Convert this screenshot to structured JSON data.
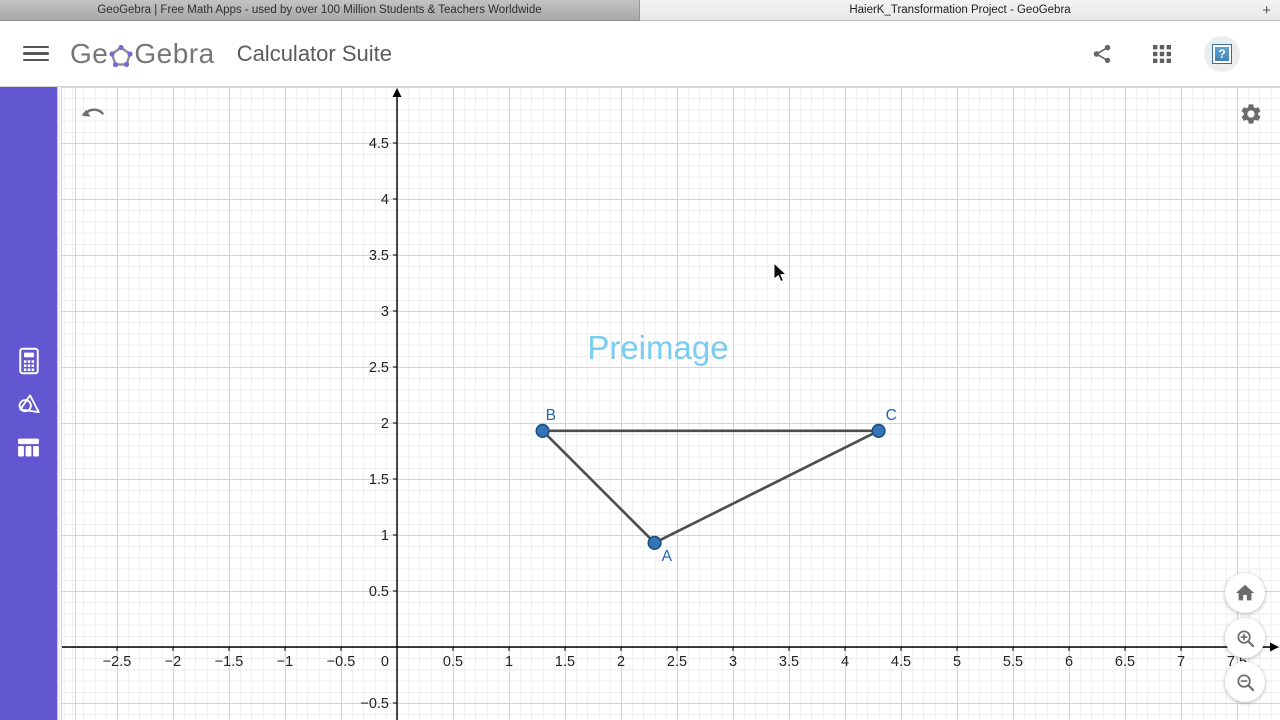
{
  "browser": {
    "tabs": [
      {
        "title": "GeoGebra | Free Math Apps - used by over 100 Million Students & Teachers Worldwide",
        "active": false
      },
      {
        "title": "HaierK_Transformation Project - GeoGebra",
        "active": true
      }
    ],
    "new_tab_label": "+"
  },
  "header": {
    "logo_prefix": "Ge",
    "logo_suffix": "Gebra",
    "app_title": "Calculator Suite",
    "help_label": "?"
  },
  "icons": {
    "menu": "hamburger-menu",
    "share": "share-icon",
    "apps": "apps-grid-icon",
    "help": "help-icon",
    "sidebar": [
      "calculator-icon",
      "geometry-icon",
      "table-icon"
    ],
    "graph_controls": [
      "undo-icon",
      "settings-gear-icon",
      "home-icon",
      "zoom-in-icon",
      "zoom-out-icon"
    ]
  },
  "colors": {
    "sidebar_purple": "#6357d1",
    "point_fill": "#3375b6",
    "point_border": "#1d4f87",
    "point_label": "#2565ae",
    "segment": "#4d4d4d",
    "annotation_blue": "#7bccf1",
    "axis": "#000000"
  },
  "chart_data": {
    "type": "scatter",
    "title": "Preimage",
    "annotation": {
      "text": "Preimage",
      "x": 2.33,
      "y": 2.57,
      "color": "#7bccf1",
      "font_size": 33
    },
    "points": [
      {
        "label": "A",
        "x": 2.3,
        "y": 0.93,
        "label_offset": [
          7,
          18
        ]
      },
      {
        "label": "B",
        "x": 1.3,
        "y": 1.93,
        "label_offset": [
          3,
          -11
        ]
      },
      {
        "label": "C",
        "x": 4.3,
        "y": 1.93,
        "label_offset": [
          7,
          -11
        ]
      }
    ],
    "segments": [
      [
        "B",
        "A"
      ],
      [
        "A",
        "C"
      ],
      [
        "B",
        "C"
      ]
    ],
    "x_ticks": [
      -2.5,
      -2,
      -1.5,
      -1,
      -0.5,
      0.5,
      1,
      1.5,
      2,
      2.5,
      3,
      3.5,
      4,
      4.5,
      5,
      5.5,
      6,
      6.5,
      7,
      7.5
    ],
    "y_ticks": [
      -0.5,
      0.5,
      1,
      1.5,
      2,
      2.5,
      3,
      3.5,
      4,
      4.5
    ],
    "origin_label": "0",
    "tick_step": 0.5,
    "xlim": [
      -2.99,
      7.88
    ],
    "ylim": [
      -0.65,
      5.0
    ],
    "grid": true,
    "legend": false,
    "point_color": "#3375b6",
    "point_border_color": "#1d4f87",
    "label_color": "#2565ae",
    "segment_color": "#4d4d4d",
    "axis_color": "#000000"
  }
}
